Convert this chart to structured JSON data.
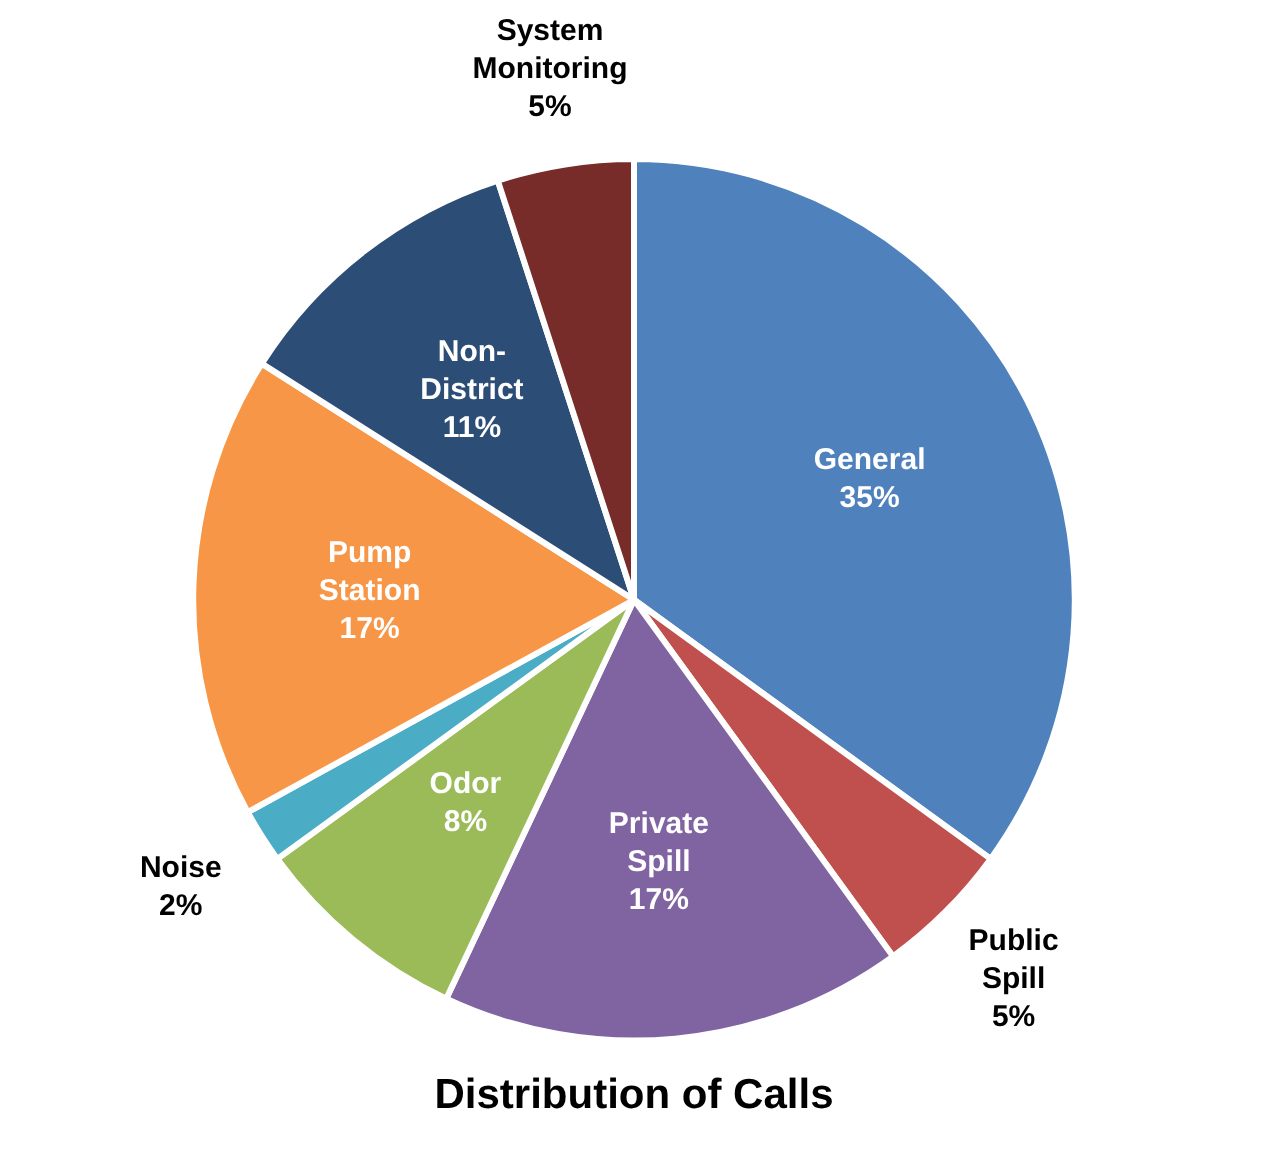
{
  "chart_data": {
    "type": "pie",
    "title": "Distribution of Calls",
    "categories": [
      "General",
      "Public Spill",
      "Private Spill",
      "Odor",
      "Noise",
      "Pump Station",
      "Non-District",
      "System Monitoring"
    ],
    "values": [
      35,
      5,
      17,
      8,
      2,
      17,
      11,
      5
    ],
    "value_labels": [
      "35%",
      "5%",
      "17%",
      "8%",
      "2%",
      "17%",
      "11%",
      "5%"
    ],
    "colors": [
      "#4f81bd",
      "#c0504d",
      "#8064a2",
      "#9bbb59",
      "#4bacc6",
      "#f79646",
      "#2c4d75",
      "#772c2a"
    ],
    "legend": false
  }
}
